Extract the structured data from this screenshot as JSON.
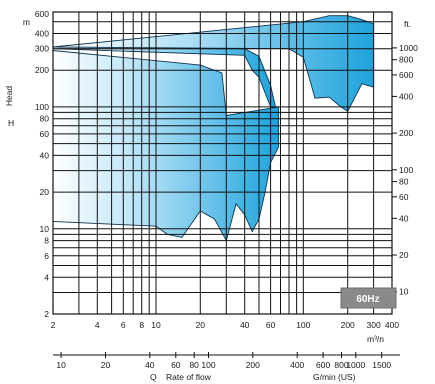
{
  "chart_data": {
    "type": "area",
    "title": "",
    "frequency_badge": "60Hz",
    "axes": {
      "x_bottom": {
        "label": "m³/n",
        "scale": "log",
        "range": [
          2,
          400
        ],
        "tick_labels": [
          "2",
          "4",
          "6",
          "8",
          "10",
          "20",
          "40",
          "60",
          "100",
          "200",
          "300",
          "400"
        ]
      },
      "x_secondary": {
        "q_label": "Q",
        "label": "Rate of flow",
        "unit_label": "G/min (US)",
        "scale": "log",
        "tick_labels": [
          "10",
          "20",
          "40",
          "60",
          "80",
          "100",
          "200",
          "400",
          "600",
          "800",
          "1000",
          "1500"
        ]
      },
      "y_left": {
        "label": "Head",
        "symbol": "H",
        "unit": "m",
        "scale": "log",
        "range": [
          2,
          600
        ],
        "tick_labels": [
          "600",
          "400",
          "300",
          "200",
          "100",
          "80",
          "60",
          "40",
          "20",
          "10",
          "8",
          "6",
          "4",
          "2"
        ]
      },
      "y_right": {
        "unit": "ft.",
        "scale": "log",
        "tick_labels": [
          "1000",
          "800",
          "600",
          "400",
          "200",
          "100",
          "80",
          "60",
          "40",
          "20",
          "10"
        ]
      }
    },
    "grid": true,
    "envelopes": [
      {
        "name": "",
        "x": [
          2,
          80,
          100,
          120,
          150,
          180,
          200,
          250,
          300
        ],
        "y": [
          310,
          300,
          255,
          118,
          120,
          100,
          92,
          155,
          145
        ],
        "top_x": [
          2,
          100,
          150,
          200,
          250,
          300
        ],
        "top_y": [
          310,
          500,
          560,
          560,
          520,
          480
        ]
      },
      {
        "name": "",
        "x": [
          2,
          40,
          45,
          50,
          60,
          65
        ],
        "y": [
          300,
          265,
          200,
          175,
          100,
          98
        ],
        "top_x": [
          2,
          40,
          50,
          60
        ],
        "top_y": [
          300,
          300,
          260,
          150
        ]
      },
      {
        "name": "",
        "x": [
          2,
          10,
          12,
          15,
          20,
          25,
          30,
          35,
          40,
          45,
          50,
          55,
          60,
          68
        ],
        "y": [
          11.5,
          10.5,
          9,
          8.5,
          14,
          12,
          8,
          16,
          13,
          9.5,
          12,
          20,
          35,
          47
        ],
        "top_x": [
          2,
          20,
          28,
          30,
          68
        ],
        "top_y": [
          290,
          220,
          190,
          85,
          100
        ]
      }
    ]
  }
}
